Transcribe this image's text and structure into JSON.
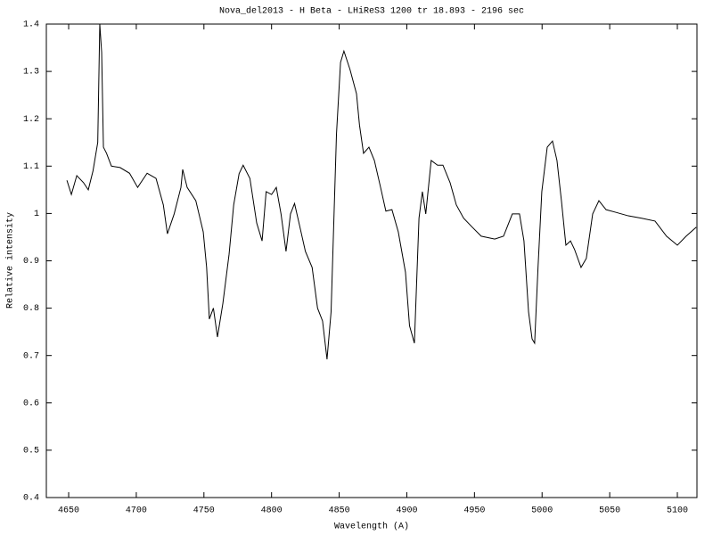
{
  "chart_data": {
    "type": "line",
    "title": "Nova_del2013 - H Beta - LHiReS3 1200 tr 18.893 - 2196 sec",
    "x_label": "Wavelength (A)",
    "y_label": "Relative intensity",
    "color": "#000000",
    "x": [
      4648.7,
      4652,
      4656,
      4661,
      4664.5,
      4668,
      4671.5,
      4673,
      4674.4,
      4675.7,
      4678,
      4681.6,
      4688,
      4695,
      4701,
      4708,
      4714.6,
      4720,
      4723,
      4728,
      4733,
      4734.3,
      4737.6,
      4744,
      4749.5,
      4752,
      4754,
      4757,
      4760,
      4764,
      4768.6,
      4772,
      4776,
      4779,
      4784,
      4789,
      4793,
      4796,
      4800,
      4803.5,
      4807,
      4810.7,
      4814,
      4817,
      4821,
      4825,
      4830,
      4834,
      4837.7,
      4841,
      4844,
      4848,
      4851,
      4853.5,
      4858,
      4862.8,
      4865,
      4868,
      4872,
      4876,
      4880.6,
      4884.5,
      4889,
      4893.7,
      4899,
      4902,
      4905.6,
      4909,
      4911.5,
      4914,
      4918,
      4922.7,
      4926.7,
      4932,
      4936.6,
      4942,
      4948.4,
      4955,
      4965,
      4971.5,
      4978,
      4983.3,
      4986.6,
      4990,
      4992.6,
      4994.5,
      4997,
      4999.8,
      5003.8,
      5007.7,
      5011,
      5014.3,
      5017.6,
      5021,
      5024,
      5028.8,
      5032.7,
      5037.4,
      5042,
      5047.3,
      5053.8,
      5063.7,
      5073.6,
      5083.5,
      5092,
      5100,
      5106.5,
      5114
    ],
    "values": [
      1.07,
      1.04,
      1.08,
      1.065,
      1.05,
      1.09,
      1.15,
      1.4,
      1.34,
      1.14,
      1.127,
      1.1,
      1.097,
      1.085,
      1.055,
      1.085,
      1.074,
      1.018,
      0.957,
      0.999,
      1.055,
      1.093,
      1.055,
      1.027,
      0.961,
      0.886,
      0.777,
      0.8,
      0.739,
      0.81,
      0.914,
      1.018,
      1.084,
      1.102,
      1.074,
      0.98,
      0.942,
      1.046,
      1.04,
      1.055,
      0.999,
      0.92,
      0.999,
      1.021,
      0.971,
      0.92,
      0.886,
      0.8,
      0.773,
      0.692,
      0.792,
      1.168,
      1.319,
      1.343,
      1.304,
      1.253,
      1.187,
      1.127,
      1.14,
      1.112,
      1.055,
      1.005,
      1.008,
      0.961,
      0.876,
      0.763,
      0.726,
      0.99,
      1.046,
      0.999,
      1.112,
      1.102,
      1.102,
      1.065,
      1.018,
      0.99,
      0.971,
      0.952,
      0.946,
      0.952,
      0.999,
      0.999,
      0.942,
      0.792,
      0.735,
      0.726,
      0.886,
      1.046,
      1.14,
      1.153,
      1.112,
      1.027,
      0.933,
      0.942,
      0.924,
      0.886,
      0.905,
      0.999,
      1.027,
      1.008,
      1.003,
      0.995,
      0.99,
      0.984,
      0.952,
      0.933,
      0.952,
      0.971
    ],
    "xlim": [
      4633.5,
      5114.5
    ],
    "ylim": [
      0.4,
      1.4
    ],
    "xticks": [
      4650,
      4700,
      4750,
      4800,
      4850,
      4900,
      4950,
      5000,
      5050,
      5100
    ],
    "yticks": [
      0.4,
      0.5,
      0.6,
      0.7,
      0.8,
      0.9,
      1,
      1.1,
      1.2,
      1.3,
      1.4
    ],
    "grid": false
  }
}
